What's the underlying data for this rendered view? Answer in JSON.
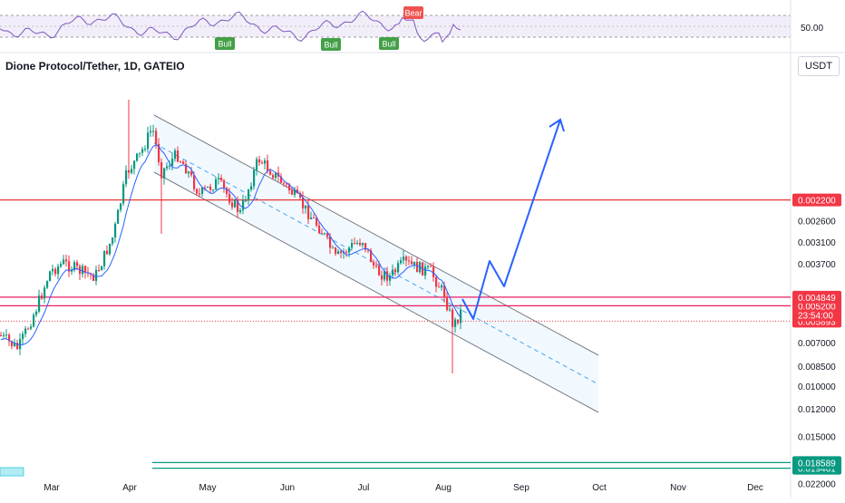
{
  "header": {
    "title": "Dione Protocol/Tether, 1D, GATEIO",
    "currency_button": "USDT"
  },
  "rsi_panel": {
    "level_label": "50.00",
    "signals": [
      "Bull",
      "Bull",
      "Bull",
      "Bear"
    ]
  },
  "chart_data": {
    "type": "candlestick",
    "title": "Dione Protocol/Tether, 1D, GATEIO",
    "x_ticks": [
      "Mar",
      "Apr",
      "May",
      "Jun",
      "Jul",
      "Aug",
      "Sep",
      "Oct",
      "Nov",
      "Dec"
    ],
    "y_scale": "log",
    "y_ticks": [
      "0.022000",
      "0.015000",
      "0.012000",
      "0.010000",
      "0.008500",
      "0.007000",
      "0.003700",
      "0.003100",
      "0.002600"
    ],
    "y_tick_values": [
      0.022,
      0.015,
      0.012,
      0.01,
      0.0085,
      0.007,
      0.0037,
      0.0031,
      0.0026
    ],
    "price_labels": [
      {
        "text": "0.019461",
        "value": 0.019461,
        "color": "#089981"
      },
      {
        "text": "0.018589",
        "value": 0.018589,
        "color": "#089981"
      },
      {
        "text": "0.005893",
        "value": 0.005893,
        "color": "#f23645"
      },
      {
        "text": "23:54:00",
        "value": 0.0056,
        "color": "#f23645"
      },
      {
        "text": "0.005200",
        "value": 0.0052,
        "color": "#f23645"
      },
      {
        "text": "0.004849",
        "value": 0.004849,
        "color": "#f23645"
      },
      {
        "text": "0.002200",
        "value": 0.0022,
        "color": "#f23645"
      }
    ],
    "horizontal_levels": [
      {
        "value": 0.019461,
        "color": "#089981"
      },
      {
        "value": 0.018589,
        "color": "#089981"
      },
      {
        "value": 0.0052,
        "color": "#e91e63"
      },
      {
        "value": 0.004849,
        "color": "#e91e63"
      },
      {
        "value": 0.0022,
        "color": "#e53935"
      }
    ],
    "current_price": 0.005893,
    "colors": {
      "up": "#089981",
      "down": "#f23645",
      "ma": "#2962ff",
      "projection": "#2962ff"
    }
  }
}
